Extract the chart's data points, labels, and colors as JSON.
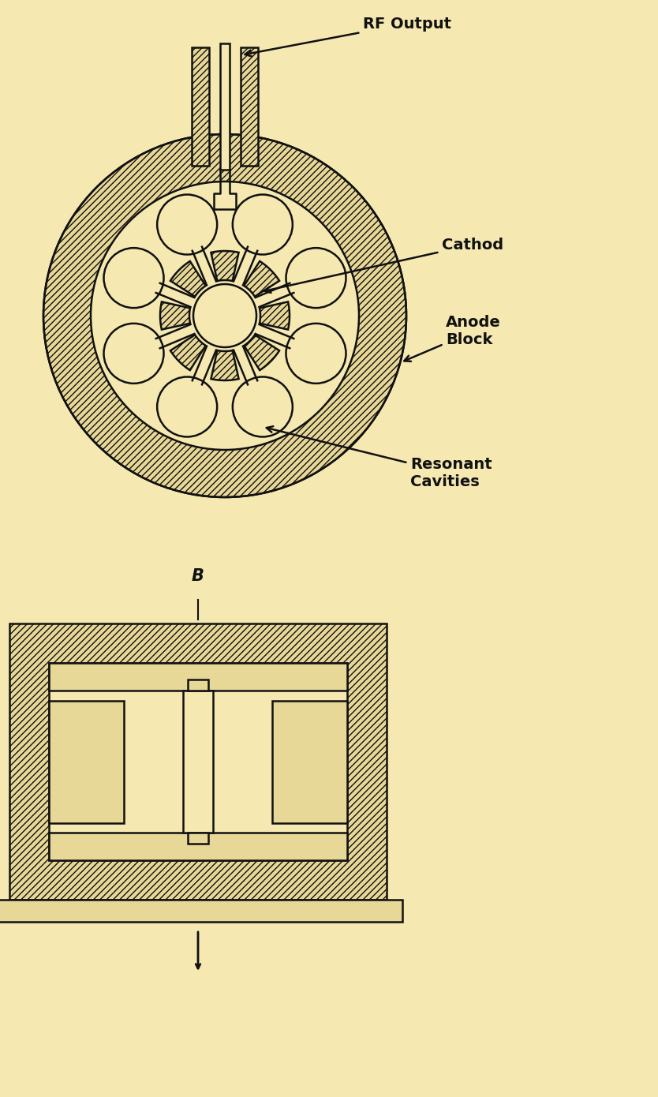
{
  "bg_color": "#f5e8b0",
  "line_color": "#111111",
  "fill_color": "#f5e8b0",
  "metal_fill": "#e8d898",
  "figsize": [
    8.34,
    13.9
  ],
  "dpi": 100,
  "labels": {
    "rf_output": "RF Output",
    "cathode": "Cathod",
    "anode_block": "Anode\nBlock",
    "resonant_cavities": "Resonant\nCavities",
    "B": "B"
  }
}
